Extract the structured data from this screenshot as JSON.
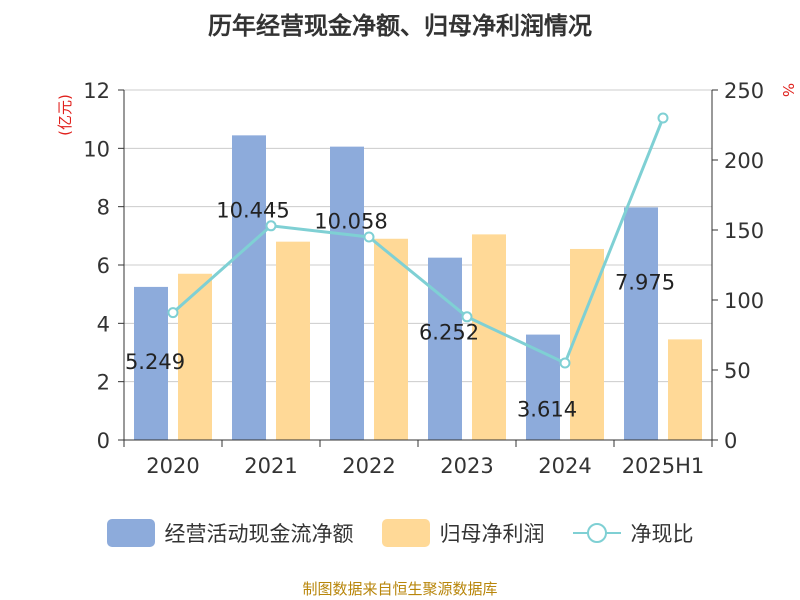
{
  "title": "历年经营现金净额、归母净利润情况",
  "source": "制图数据来自恒生聚源数据库",
  "chart_data": {
    "type": "bar",
    "title": "历年经营现金净额、归母净利润情况",
    "categories": [
      "2020",
      "2021",
      "2022",
      "2023",
      "2024",
      "2025H1"
    ],
    "y_left": {
      "unit": "(亿元)",
      "range": [
        0,
        12
      ],
      "ticks": [
        "0",
        "2",
        "4",
        "6",
        "8",
        "10",
        "12"
      ]
    },
    "y_right": {
      "unit": "%",
      "range": [
        0,
        250
      ],
      "ticks": [
        "0",
        "50",
        "100",
        "150",
        "200",
        "250"
      ]
    },
    "grid": true,
    "legend_position": "bottom",
    "series": [
      {
        "name": "经营活动现金流净额",
        "type": "bar",
        "axis": "left",
        "color": "#8dabdb",
        "values": [
          5.249,
          10.445,
          10.058,
          6.252,
          3.614,
          7.975
        ],
        "labels": [
          "5.249",
          "10.445",
          "10.058",
          "6.252",
          "3.614",
          "7.975"
        ]
      },
      {
        "name": "归母净利润",
        "type": "bar",
        "axis": "left",
        "color": "#ffd997",
        "values": [
          5.7,
          6.8,
          6.9,
          7.05,
          6.55,
          3.45
        ]
      },
      {
        "name": "净现比",
        "type": "line",
        "axis": "right",
        "color": "#7fd0d4",
        "values": [
          91,
          153,
          145,
          88,
          55,
          230
        ]
      }
    ]
  }
}
